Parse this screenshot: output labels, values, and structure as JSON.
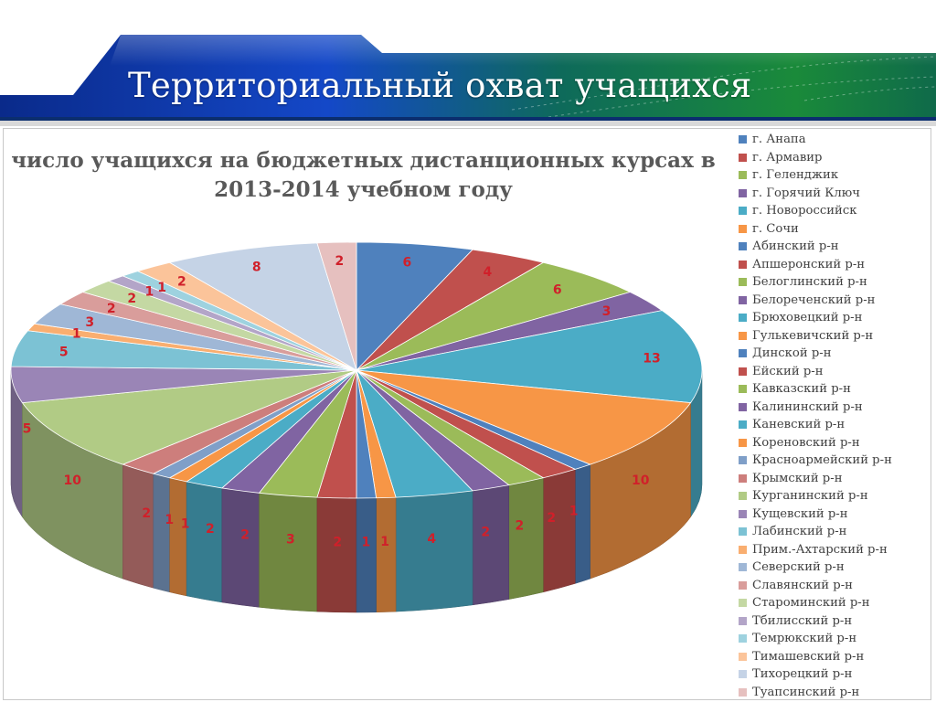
{
  "slide_title": "Территориальный охват учащихся",
  "chart_data": {
    "type": "pie",
    "title": "число учащихся  на  бюджетных  дистанционных курсах в 2013-2014 учебном году",
    "legend_position": "right",
    "label_color": "#d0202a",
    "categories": [
      "г. Анапа",
      "г. Армавир",
      "г. Геленджик",
      "г. Горячий Ключ",
      "г. Новороссийск",
      "г. Сочи",
      "Абинский р-н",
      "Апшеронский р-н",
      "Белоглинский р-н",
      "Белореченский р-н",
      "Брюховецкий р-н",
      "Гулькевичский р-н",
      "Динской р-н",
      "Ейский р-н",
      "Кавказский р-н",
      "Калининский р-н",
      "Каневский р-н",
      "Кореновский р-н",
      "Красноармейский р-н",
      "Крымский р-н",
      "Курганинский р-н",
      "Кущевский р-н",
      "Лабинский р-н",
      "Прим.-Ахтарский р-н",
      "Северский р-н",
      "Славянский р-н",
      "Староминский р-н",
      "Тбилисский р-н",
      "Темрюкский р-н",
      "Тимашевский р-н",
      "Тихорецкий р-н",
      "Туапсинский р-н"
    ],
    "values": [
      6,
      4,
      6,
      3,
      13,
      10,
      1,
      2,
      2,
      2,
      4,
      1,
      1,
      2,
      3,
      2,
      2,
      1,
      1,
      2,
      10,
      5,
      5,
      1,
      3,
      2,
      2,
      1,
      1,
      2,
      8,
      2
    ],
    "colors": [
      "#4f81bd",
      "#c0504d",
      "#9bbb59",
      "#8064a2",
      "#4bacc6",
      "#f79646",
      "#4f81bd",
      "#c0504d",
      "#9bbb59",
      "#8064a2",
      "#4bacc6",
      "#f79646",
      "#4f81bd",
      "#c0504d",
      "#9bbb59",
      "#8064a2",
      "#4bacc6",
      "#f79646",
      "#7f9fc8",
      "#cd7e7c",
      "#b1cb85",
      "#9a85b6",
      "#7cc2d4",
      "#f9ae70",
      "#9fb7d6",
      "#d99d9b",
      "#c4d8a3",
      "#b3a5c8",
      "#9ed2df",
      "#fbc49a",
      "#c5d3e6",
      "#e6c0bf"
    ]
  }
}
